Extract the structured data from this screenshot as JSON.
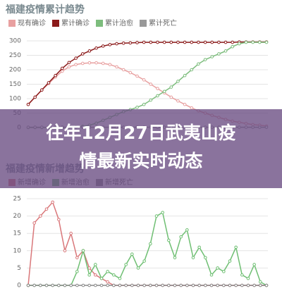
{
  "chart_data": [
    {
      "type": "line",
      "title": "福建疫情累计趋势",
      "categories": [
        null,
        null,
        null,
        null,
        null,
        null,
        null,
        null,
        null,
        null,
        null,
        null,
        null,
        null,
        null,
        null,
        null,
        null,
        null,
        null,
        null,
        null,
        null,
        null,
        null,
        null,
        null,
        null,
        null,
        null,
        null,
        null,
        null,
        null,
        null,
        null
      ],
      "series": [
        {
          "name": "现有确诊",
          "color": "#e8a0a0",
          "values": [
            80,
            105,
            130,
            152,
            175,
            195,
            210,
            218,
            222,
            224,
            224,
            222,
            218,
            210,
            200,
            190,
            178,
            165,
            150,
            135,
            120,
            105,
            92,
            80,
            68,
            58,
            50,
            42,
            35,
            28,
            22,
            18,
            14,
            10,
            8,
            5
          ]
        },
        {
          "name": "累计确诊",
          "color": "#8b1a1a",
          "values": [
            80,
            105,
            130,
            155,
            180,
            205,
            225,
            240,
            255,
            265,
            275,
            282,
            287,
            290,
            292,
            293,
            294,
            295,
            295,
            295,
            295,
            295,
            295,
            295,
            295,
            295,
            295,
            295,
            295,
            295,
            295,
            296,
            296,
            296,
            296,
            296
          ]
        },
        {
          "name": "累计治愈",
          "color": "#7dbd7d",
          "values": [
            0,
            0,
            0,
            0,
            0,
            0,
            1,
            2,
            4,
            8,
            15,
            25,
            35,
            45,
            55,
            62,
            70,
            80,
            95,
            110,
            125,
            140,
            160,
            180,
            200,
            220,
            235,
            245,
            255,
            265,
            280,
            290,
            295,
            295,
            295,
            295
          ]
        },
        {
          "name": "累计死亡",
          "color": "#999999",
          "values": [
            1,
            1,
            1,
            1,
            1,
            1,
            1,
            1,
            1,
            1,
            1,
            1,
            1,
            1,
            1,
            1,
            1,
            1,
            1,
            1,
            1,
            1,
            1,
            1,
            1,
            1,
            1,
            1,
            1,
            1,
            1,
            1,
            1,
            1,
            1,
            1
          ]
        }
      ],
      "ylim": [
        0,
        300
      ],
      "yticks": [
        0,
        50,
        100,
        150,
        200,
        250,
        300
      ],
      "grid": true
    },
    {
      "type": "line",
      "title": "福建疫情新增趋势",
      "categories": [
        null,
        null,
        null,
        null,
        null,
        null,
        null,
        null,
        null,
        null,
        null,
        null,
        null,
        null,
        null,
        null,
        null,
        null,
        null,
        null,
        null,
        null,
        null,
        null,
        null,
        null,
        null,
        null,
        null,
        null,
        null,
        null,
        null,
        null,
        null,
        null,
        null,
        null,
        null,
        null
      ],
      "series": [
        {
          "name": "新增确诊",
          "color": "#d9777a",
          "values": [
            0,
            18,
            20,
            22,
            24,
            19,
            10,
            15,
            8,
            10,
            5,
            3,
            2,
            1,
            0,
            0,
            0,
            0,
            0,
            0,
            0,
            0,
            0,
            0,
            0,
            0,
            0,
            0,
            0,
            0,
            0,
            0,
            0,
            0,
            0,
            0,
            0,
            0,
            0,
            0
          ]
        },
        {
          "name": "新增治愈",
          "color": "#6fbf73",
          "values": [
            0,
            0,
            0,
            0,
            0,
            0,
            0,
            0,
            4,
            10,
            3,
            6,
            2,
            4,
            3,
            2,
            6,
            9,
            5,
            7,
            12,
            20,
            21,
            13,
            8,
            14,
            16,
            8,
            11,
            8,
            3,
            5,
            4,
            7,
            11,
            3,
            2,
            6,
            1,
            0
          ]
        },
        {
          "name": "新增死亡",
          "color": "#888888",
          "values": [
            0,
            0,
            0,
            0,
            0,
            0,
            0,
            0,
            0,
            0,
            0,
            0,
            0,
            0,
            0,
            0,
            0,
            0,
            0,
            0,
            0,
            0,
            0,
            0,
            0,
            0,
            0,
            0,
            0,
            0,
            0,
            0,
            0,
            0,
            0,
            0,
            0,
            0,
            0,
            0
          ]
        }
      ],
      "ylim": [
        0,
        25
      ],
      "yticks": [
        0,
        5,
        10,
        15,
        20,
        25
      ],
      "grid": true
    }
  ],
  "overlay": {
    "lines": [
      "往年12月27日武夷山疫",
      "情最新实时动态"
    ]
  }
}
